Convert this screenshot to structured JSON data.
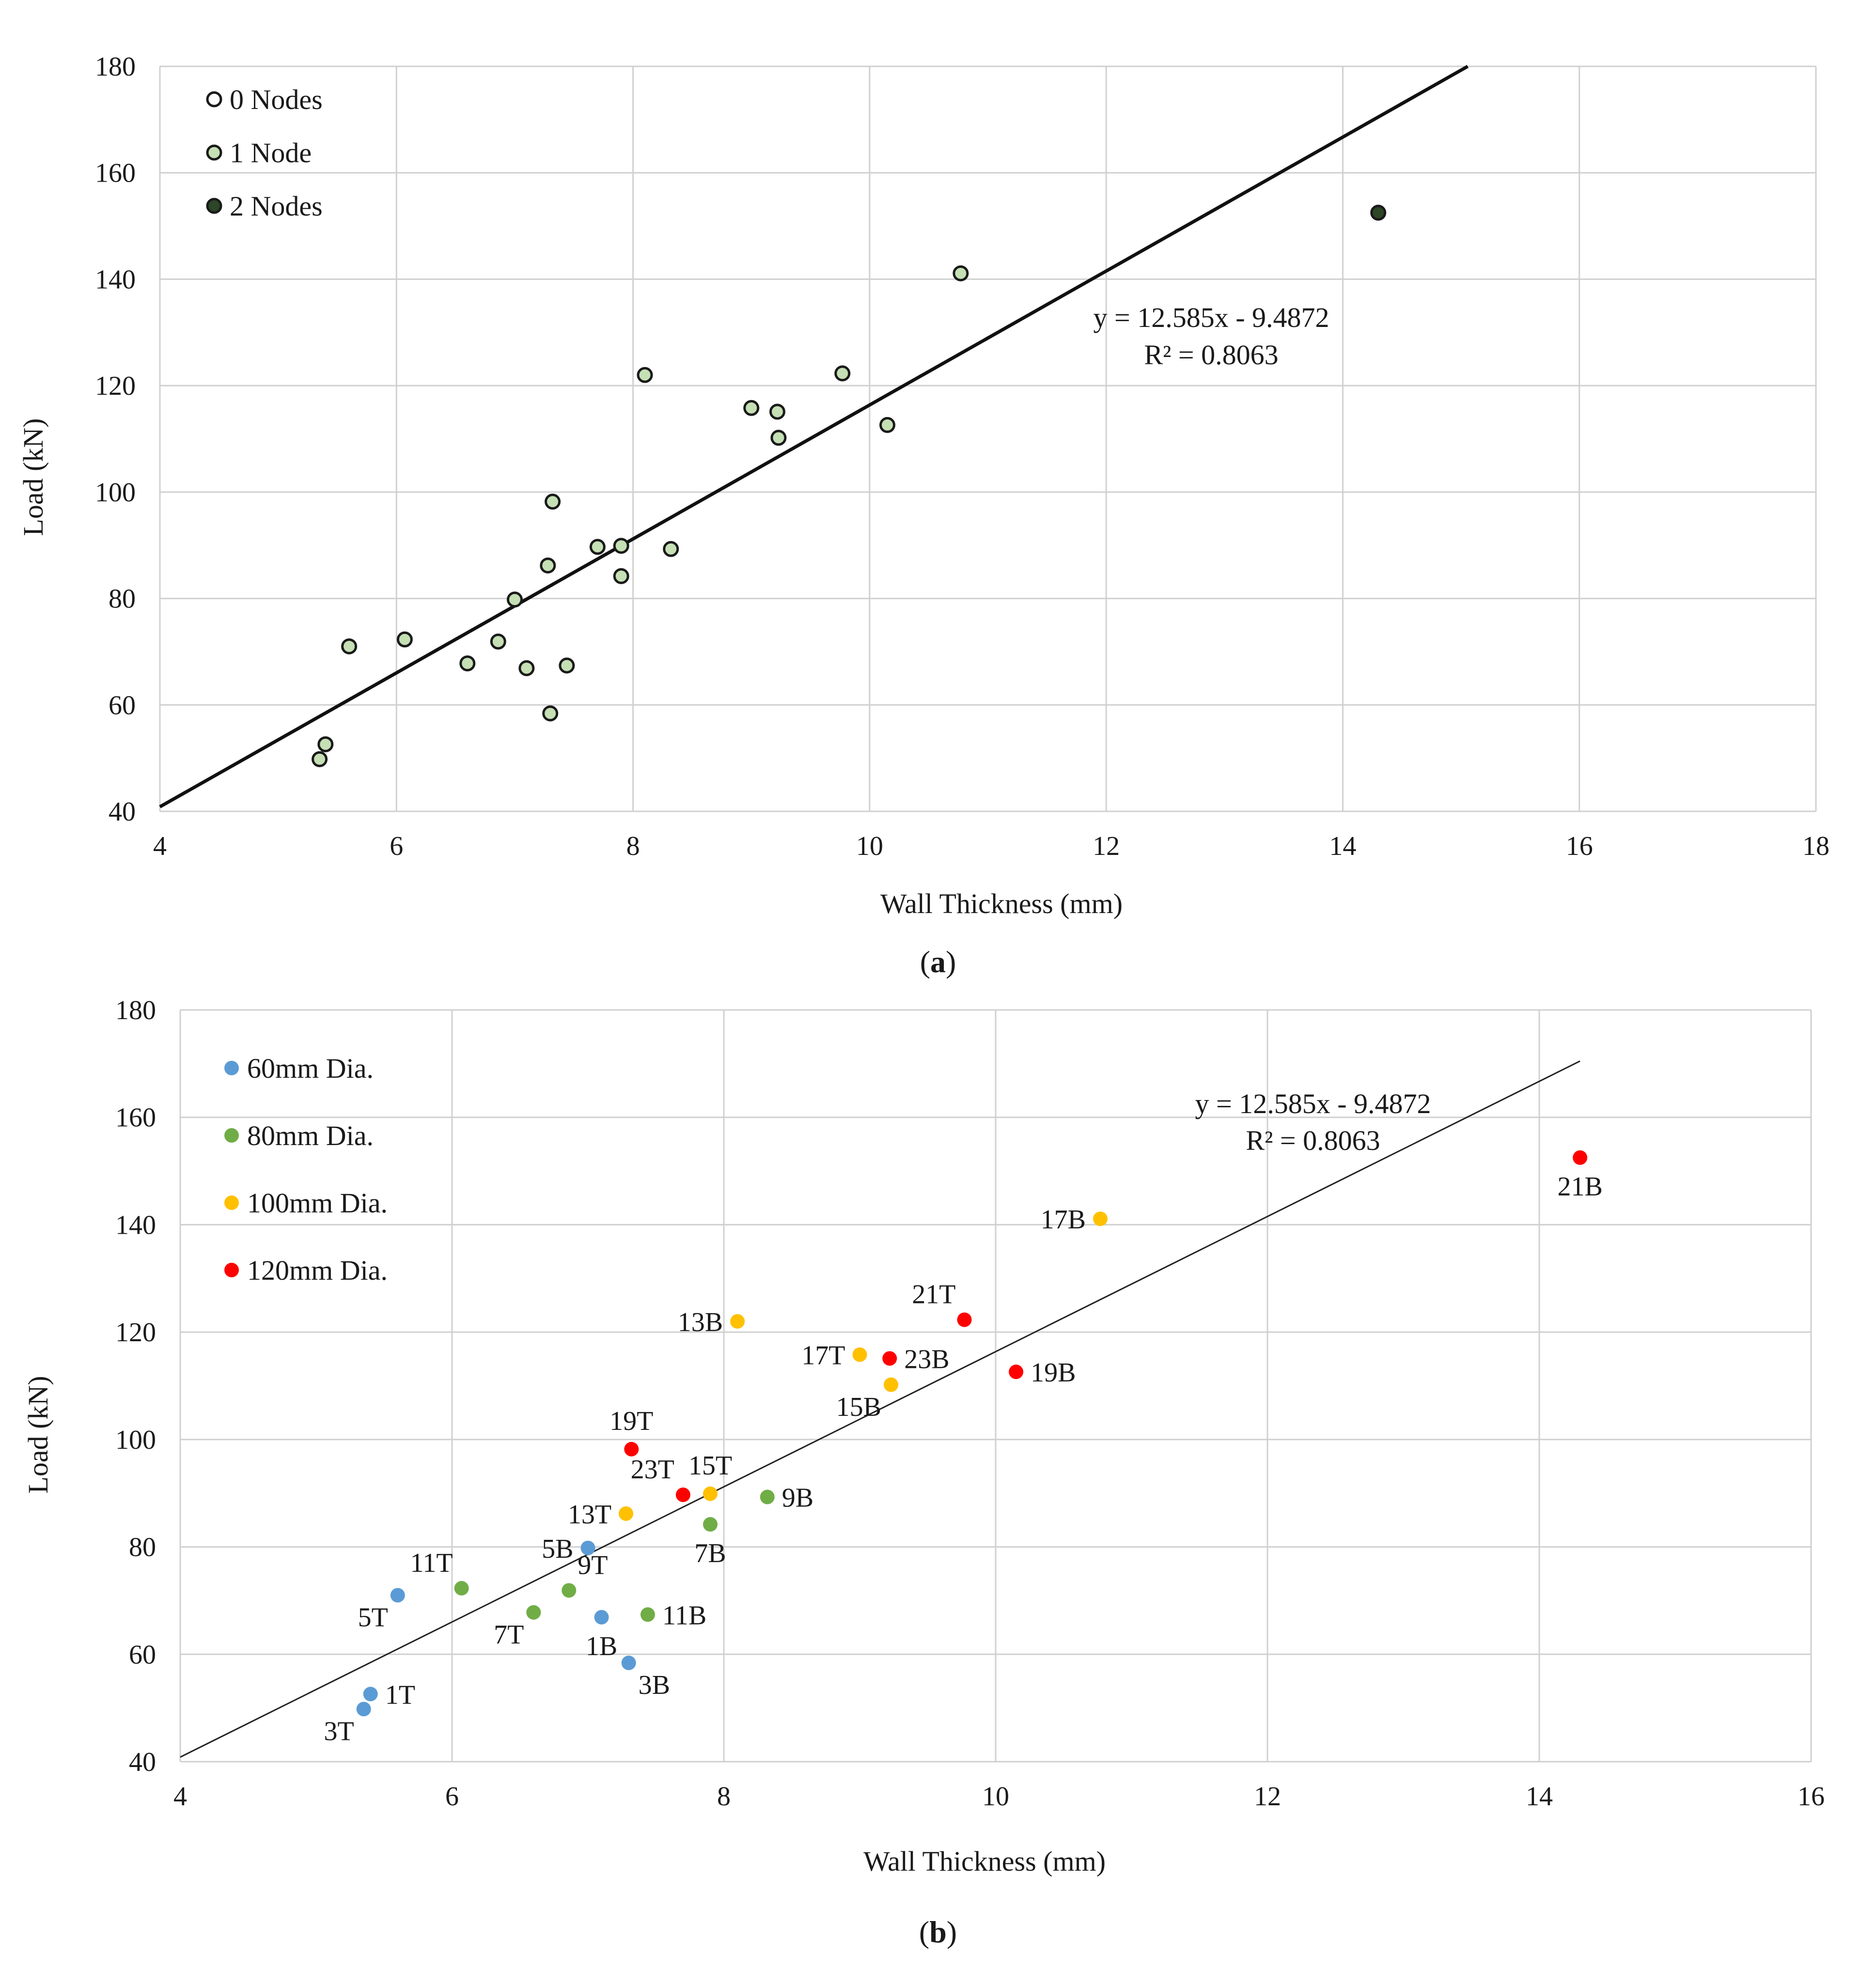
{
  "chart_data": [
    {
      "panel": "a",
      "caption_letter": "a",
      "type": "scatter",
      "xlabel": "Wall Thickness (mm)",
      "ylabel": "Load (kN)",
      "xlim": [
        4,
        18
      ],
      "ylim": [
        40,
        180
      ],
      "xticks": [
        4,
        6,
        8,
        10,
        12,
        14,
        16,
        18
      ],
      "yticks": [
        40,
        60,
        80,
        100,
        120,
        140,
        160,
        180
      ],
      "grid": true,
      "legend_position": "top-left",
      "trendline": {
        "slope": 12.585,
        "intercept": -9.4872,
        "equation": "y = 12.585x - 9.4872",
        "r2": "R² = 0.8063"
      },
      "series": [
        {
          "name": "0 Nodes",
          "color": "#ffffff",
          "stroke": "#1a1a1a",
          "points": []
        },
        {
          "name": "1 Node",
          "color": "#c5e0b4",
          "stroke": "#1a1a1a",
          "points": [
            [
              5.35,
              49.8
            ],
            [
              5.4,
              52.6
            ],
            [
              5.6,
              71
            ],
            [
              6.07,
              72.3
            ],
            [
              6.6,
              67.8
            ],
            [
              6.86,
              71.9
            ],
            [
              7.0,
              79.8
            ],
            [
              7.1,
              66.9
            ],
            [
              7.28,
              86.2
            ],
            [
              7.3,
              58.4
            ],
            [
              7.32,
              98.2
            ],
            [
              7.44,
              67.4
            ],
            [
              7.7,
              89.7
            ],
            [
              7.9,
              84.2
            ],
            [
              7.9,
              89.9
            ],
            [
              8.1,
              122
            ],
            [
              8.32,
              89.3
            ],
            [
              9.0,
              115.8
            ],
            [
              9.22,
              115.1
            ],
            [
              9.23,
              110.2
            ],
            [
              9.77,
              122.3
            ],
            [
              10.15,
              112.6
            ],
            [
              10.77,
              141.1
            ]
          ]
        },
        {
          "name": "2 Nodes",
          "color": "#2d4627",
          "stroke": "#1a1a1a",
          "points": [
            [
              14.3,
              152.5
            ]
          ]
        }
      ]
    },
    {
      "panel": "b",
      "caption_letter": "b",
      "type": "scatter",
      "xlabel": "Wall Thickness (mm)",
      "ylabel": "Load (kN)",
      "xlim": [
        4,
        16
      ],
      "ylim": [
        40,
        180
      ],
      "xticks": [
        4,
        6,
        8,
        10,
        12,
        14,
        16
      ],
      "yticks": [
        40,
        60,
        80,
        100,
        120,
        140,
        160,
        180
      ],
      "grid": true,
      "legend_position": "top-left",
      "trendline": {
        "slope": 12.585,
        "intercept": -9.4872,
        "x_end": 14.3,
        "equation": "y = 12.585x - 9.4872",
        "r2": "R² = 0.8063"
      },
      "series": [
        {
          "name": "60mm Dia.",
          "color": "#5b9bd5",
          "points": [
            {
              "x": 5.35,
              "y": 49.8,
              "label": "3T",
              "pos": "bl"
            },
            {
              "x": 5.4,
              "y": 52.6,
              "label": "1T",
              "pos": "r"
            },
            {
              "x": 5.6,
              "y": 71,
              "label": "5T",
              "pos": "bl"
            },
            {
              "x": 7.0,
              "y": 79.8,
              "label": "5B",
              "pos": "l"
            },
            {
              "x": 7.1,
              "y": 66.9,
              "label": "1B",
              "pos": "b"
            },
            {
              "x": 7.3,
              "y": 58.4,
              "label": "3B",
              "pos": "br"
            }
          ]
        },
        {
          "name": "80mm Dia.",
          "color": "#70ad47",
          "points": [
            {
              "x": 6.07,
              "y": 72.3,
              "label": "11T",
              "pos": "tl"
            },
            {
              "x": 6.6,
              "y": 67.8,
              "label": "7T",
              "pos": "bl"
            },
            {
              "x": 6.86,
              "y": 71.9,
              "label": "9T",
              "pos": "tr"
            },
            {
              "x": 7.44,
              "y": 67.4,
              "label": "11B",
              "pos": "r"
            },
            {
              "x": 7.9,
              "y": 84.2,
              "label": "7B",
              "pos": "b"
            },
            {
              "x": 8.32,
              "y": 89.3,
              "label": "9B",
              "pos": "r"
            }
          ]
        },
        {
          "name": "100mm Dia.",
          "color": "#ffc000",
          "points": [
            {
              "x": 7.28,
              "y": 86.2,
              "label": "13T",
              "pos": "l"
            },
            {
              "x": 7.9,
              "y": 89.9,
              "label": "15T",
              "pos": "t"
            },
            {
              "x": 8.1,
              "y": 122,
              "label": "13B",
              "pos": "l"
            },
            {
              "x": 9.0,
              "y": 115.8,
              "label": "17T",
              "pos": "l"
            },
            {
              "x": 9.23,
              "y": 110.2,
              "label": "15B",
              "pos": "bl"
            },
            {
              "x": 10.77,
              "y": 141.1,
              "label": "17B",
              "pos": "l"
            }
          ]
        },
        {
          "name": "120mm Dia.",
          "color": "#ff0000",
          "points": [
            {
              "x": 7.32,
              "y": 98.2,
              "label": "19T",
              "pos": "t"
            },
            {
              "x": 7.7,
              "y": 89.7,
              "label": "23T",
              "pos": "tl"
            },
            {
              "x": 9.22,
              "y": 115.1,
              "label": "23B",
              "pos": "r"
            },
            {
              "x": 9.77,
              "y": 122.3,
              "label": "21T",
              "pos": "tl"
            },
            {
              "x": 10.15,
              "y": 112.6,
              "label": "19B",
              "pos": "r"
            },
            {
              "x": 14.3,
              "y": 152.5,
              "label": "21B",
              "pos": "b"
            }
          ]
        }
      ]
    }
  ]
}
